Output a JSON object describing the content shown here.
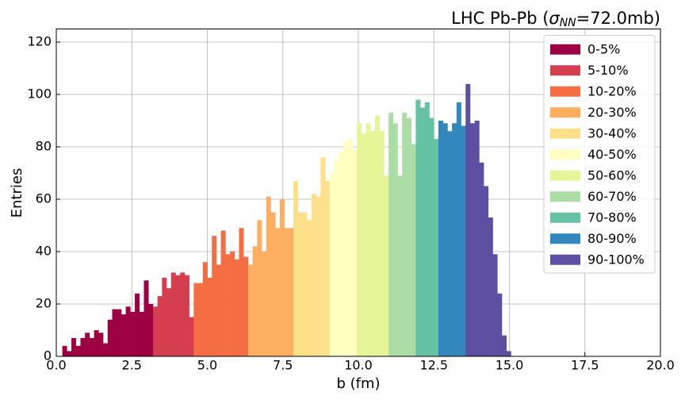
{
  "chart_data": {
    "type": "histogram",
    "title_parts": [
      "LHC Pb-Pb (",
      "σ",
      "NN",
      "=72.0mb)"
    ],
    "xlabel": "b (fm)",
    "ylabel": "Entries",
    "xlim": [
      0,
      20
    ],
    "ylim": [
      0,
      125
    ],
    "xticks": [
      {
        "value": 0,
        "label": "0.0"
      },
      {
        "value": 2.5,
        "label": "2.5"
      },
      {
        "value": 5,
        "label": "5.0"
      },
      {
        "value": 7.5,
        "label": "7.5"
      },
      {
        "value": 10,
        "label": "10.0"
      },
      {
        "value": 12.5,
        "label": "12.5"
      },
      {
        "value": 15,
        "label": "15.0"
      },
      {
        "value": 17.5,
        "label": "17.5"
      },
      {
        "value": 20,
        "label": "20.0"
      }
    ],
    "yticks": [
      0,
      20,
      40,
      60,
      80,
      100,
      120
    ],
    "grid": true,
    "legend": "upper right",
    "series": [
      {
        "name": "0-5%",
        "color": "#9e0142",
        "bins": [
          0.2,
          0.35,
          0.5,
          0.65,
          0.8,
          0.95,
          1.1,
          1.25,
          1.4,
          1.55,
          1.7,
          1.85,
          2.0,
          2.15,
          2.3,
          2.45,
          2.6,
          2.75,
          2.9,
          3.05,
          3.2
        ],
        "values": [
          4,
          2,
          7,
          4,
          7,
          9,
          7,
          10,
          9,
          5,
          14,
          18,
          18,
          16,
          19,
          17,
          24,
          17,
          29,
          20
        ]
      },
      {
        "name": "5-10%",
        "color": "#d53e4f",
        "bins": [
          3.2,
          3.35,
          3.5,
          3.65,
          3.8,
          3.95,
          4.1,
          4.25,
          4.4,
          4.55
        ],
        "values": [
          19,
          23,
          30,
          26,
          32,
          31,
          32,
          31,
          15
        ]
      },
      {
        "name": "10-20%",
        "color": "#f46d43",
        "bins": [
          4.55,
          4.7,
          4.85,
          5.0,
          5.15,
          5.3,
          5.45,
          5.6,
          5.75,
          5.9,
          6.05,
          6.2,
          6.35
        ],
        "values": [
          28,
          28,
          36,
          30,
          46,
          35,
          48,
          39,
          40,
          37,
          49,
          38
        ]
      },
      {
        "name": "20-30%",
        "color": "#fdae61",
        "bins": [
          6.35,
          6.5,
          6.65,
          6.8,
          6.95,
          7.1,
          7.25,
          7.4,
          7.55,
          7.7,
          7.85
        ],
        "values": [
          35,
          42,
          52,
          40,
          61,
          55,
          49,
          60,
          49,
          49
        ]
      },
      {
        "name": "30-40%",
        "color": "#fee08b",
        "bins": [
          7.85,
          8.0,
          8.15,
          8.3,
          8.45,
          8.6,
          8.75,
          8.9,
          9.05
        ],
        "values": [
          67,
          55,
          55,
          52,
          62,
          61,
          76,
          67
        ]
      },
      {
        "name": "40-50%",
        "color": "#ffffbf",
        "bins": [
          9.05,
          9.2,
          9.35,
          9.5,
          9.65,
          9.8,
          9.95
        ],
        "values": [
          70,
          75,
          78,
          82,
          83,
          79
        ]
      },
      {
        "name": "50-60%",
        "color": "#e6f598",
        "bins": [
          9.95,
          10.1,
          10.25,
          10.4,
          10.55,
          10.7,
          10.85,
          11.0
        ],
        "values": [
          89,
          85,
          89,
          86,
          92,
          86,
          69
        ]
      },
      {
        "name": "60-70%",
        "color": "#abdda4",
        "bins": [
          11.0,
          11.15,
          11.3,
          11.45,
          11.6,
          11.75,
          11.9
        ],
        "values": [
          93,
          89,
          69,
          93,
          91,
          81
        ]
      },
      {
        "name": "70-80%",
        "color": "#66c2a5",
        "bins": [
          11.9,
          12.05,
          12.2,
          12.35,
          12.5,
          12.65
        ],
        "values": [
          98,
          95,
          97,
          91,
          83
        ]
      },
      {
        "name": "80-90%",
        "color": "#3288bd",
        "bins": [
          12.65,
          12.8,
          12.95,
          13.1,
          13.25,
          13.4,
          13.55
        ],
        "values": [
          90,
          89,
          86,
          89,
          97,
          88
        ]
      },
      {
        "name": "90-100%",
        "color": "#5e4fa2",
        "bins": [
          13.55,
          13.7,
          13.85,
          14.0,
          14.15,
          14.3,
          14.45,
          14.6,
          14.75,
          14.9,
          15.05
        ],
        "values": [
          104,
          89,
          90,
          74,
          65,
          53,
          39,
          24,
          8,
          2
        ]
      }
    ]
  }
}
